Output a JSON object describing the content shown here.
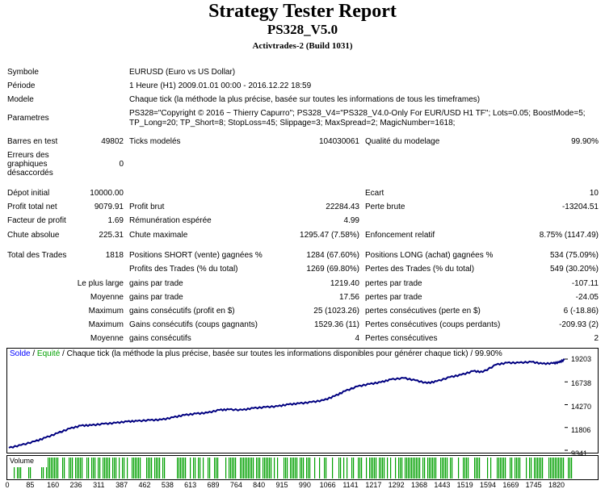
{
  "header": {
    "title": "Strategy Tester Report",
    "ea_name": "PS328_V5.0",
    "server": "Activtrades-2 (Build 1031)"
  },
  "info_rows": [
    {
      "label": "Symbole",
      "value": "EURUSD (Euro vs US Dollar)",
      "top": 0
    },
    {
      "label": "Période",
      "value": "1 Heure (H1) 2009.01.01 00:00 - 2016.12.22 18:59",
      "top": 0
    },
    {
      "label": "Modele",
      "value": "Chaque tick (la méthode la plus précise, basée sur toutes les informations de tous les timeframes)",
      "top": 0
    }
  ],
  "params": {
    "label": "Parametres",
    "line1": "PS328=\"Copyright © 2016 ~ Thierry Capurro\"; PS328_V4=\"PS328_V4.0-Only For EUR/USD H1 TF\"; Lots=0.05; BoostMode=5;",
    "line2": "TP_Long=20; TP_Short=8; StopLoss=45; Slippage=3; MaxSpread=2; MagicNumber=1618;"
  },
  "bars": {
    "label": "Barres en test",
    "value": "49802",
    "ticks_label": "Ticks modelés",
    "ticks_value": "104030061",
    "quality_label": "Qualité du modelage",
    "quality_value": "99.90%"
  },
  "errors": {
    "label_l1": "Erreurs des",
    "label_l2": "graphiques",
    "label_l3": "désaccordés",
    "value": "0"
  },
  "stats": {
    "depot_label": "Dépot initial",
    "depot_value": "10000.00",
    "ecart_label": "Ecart",
    "ecart_value": "10",
    "profit_net_label": "Profit total net",
    "profit_net_value": "9079.91",
    "profit_brut_label": "Profit brut",
    "profit_brut_value": "22284.43",
    "perte_brute_label": "Perte brute",
    "perte_brute_value": "-13204.51",
    "facteur_label": "Facteur de profit",
    "facteur_value": "1.69",
    "remun_label": "Rémunération espérée",
    "remun_value": "4.99",
    "chute_abs_label": "Chute absolue",
    "chute_abs_value": "225.31",
    "chute_max_label": "Chute maximale",
    "chute_max_value": "1295.47 (7.58%)",
    "enfonc_label": "Enfoncement relatif",
    "enfonc_value": "8.75% (1147.49)",
    "total_trades_label": "Total des Trades",
    "total_trades_value": "1818",
    "short_label": "Positions SHORT (vente) gagnées %",
    "short_value": "1284 (67.60%)",
    "long_label": "Positions LONG (achat) gagnées %",
    "long_value": "534 (75.09%)",
    "profits_trades_label": "Profits des Trades (% du total)",
    "profits_trades_value": "1269 (69.80%)",
    "pertes_trades_label": "Pertes des Trades (% du total)",
    "pertes_trades_value": "549 (30.20%)",
    "lpl_label": "Le plus large",
    "lpl_gain_label": "gains par trade",
    "lpl_gain_value": "1219.40",
    "lpl_perte_label": "pertes par trade",
    "lpl_perte_value": "-107.11",
    "moy_label": "Moyenne",
    "moy_gain_label": "gains par trade",
    "moy_gain_value": "17.56",
    "moy_perte_label": "pertes par trade",
    "moy_perte_value": "-24.05",
    "max1_label": "Maximum",
    "max1_gain_label": "gains consécutifs (profit en $)",
    "max1_gain_value": "25 (1023.26)",
    "max1_perte_label": "pertes consécutives (perte en $)",
    "max1_perte_value": "6 (-18.86)",
    "max2_label": "Maximum",
    "max2_gain_label": "Gains consécutifs (coups gagnants)",
    "max2_gain_value": "1529.36 (11)",
    "max2_perte_label": "Pertes consécutives (coups perdants)",
    "max2_perte_value": "-209.93 (2)",
    "moy2_label": "Moyenne",
    "moy2_gain_label": "gains consécutifs",
    "moy2_gain_value": "4",
    "moy2_perte_label": "Pertes consécutives",
    "moy2_perte_value": "2"
  },
  "chart_data": {
    "type": "line",
    "legend_solde": "Solde",
    "legend_sep": " / ",
    "legend_equite": "Equité",
    "legend_rest": " / Chaque tick (la méthode la plus précise, basée sur toutes les informations disponibles pour générer chaque tick) / 99.90%",
    "y_ticks": [
      "19203",
      "16738",
      "14270",
      "11806",
      "9341"
    ],
    "ylim": [
      9341,
      19203
    ],
    "x_ticks": [
      "0",
      "85",
      "160",
      "236",
      "311",
      "387",
      "462",
      "538",
      "613",
      "689",
      "764",
      "840",
      "915",
      "990",
      "1066",
      "1141",
      "1217",
      "1292",
      "1368",
      "1443",
      "1519",
      "1594",
      "1669",
      "1745",
      "1820"
    ],
    "xlim": [
      0,
      1818
    ],
    "colors": {
      "balance": "#000080",
      "equity": "#00a000",
      "volume": "#00a000",
      "legend_solde": "#0000ff",
      "legend_equite": "#00a000"
    },
    "volume_label": "Volume",
    "series": [
      {
        "name": "Solde",
        "x": [
          0,
          40,
          85,
          120,
          160,
          200,
          236,
          270,
          311,
          350,
          387,
          420,
          462,
          500,
          538,
          575,
          613,
          650,
          689,
          720,
          764,
          800,
          840,
          880,
          915,
          950,
          990,
          1030,
          1066,
          1100,
          1141,
          1180,
          1217,
          1250,
          1292,
          1330,
          1368,
          1400,
          1443,
          1480,
          1519,
          1550,
          1594,
          1630,
          1669,
          1710,
          1745,
          1780,
          1800,
          1818
        ],
        "values": [
          9600,
          9900,
          10300,
          10700,
          11200,
          11700,
          12000,
          12050,
          12200,
          12300,
          12450,
          12500,
          12600,
          12650,
          12900,
          13150,
          13300,
          13400,
          13700,
          13750,
          13700,
          13900,
          14000,
          14100,
          14300,
          14400,
          14550,
          14750,
          15200,
          15750,
          16250,
          16500,
          16700,
          17000,
          17150,
          16900,
          16600,
          16800,
          17250,
          17500,
          17900,
          17800,
          18600,
          18800,
          18800,
          18900,
          18700,
          18750,
          18850,
          19150
        ]
      }
    ]
  }
}
